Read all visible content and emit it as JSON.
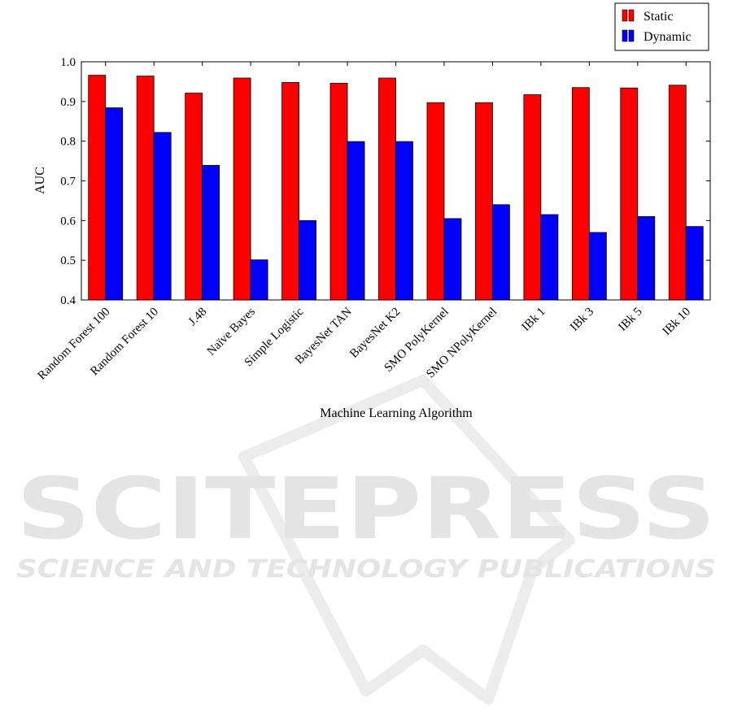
{
  "chart_data": {
    "type": "bar",
    "title": "",
    "xlabel": "Machine Learning Algorithm",
    "ylabel": "AUC",
    "ylim": [
      0.4,
      1.0
    ],
    "yticks": [
      "0.4",
      "0.5",
      "0.6",
      "0.7",
      "0.8",
      "0.9",
      "1.0"
    ],
    "grid": false,
    "legend_position": "top-right, outside plot",
    "categories": [
      "Random Forest 100",
      "Random Forest 10",
      "J.48",
      "Naïve Bayes",
      "Simple Logistic",
      "BayesNet TAN",
      "BayesNet K2",
      "SMO PolyKernel",
      "SMO NPolyKernel",
      "IBk 1",
      "IBk 3",
      "IBk 5",
      "IBk 10"
    ],
    "series": [
      {
        "name": "Static",
        "color": "#ff0000",
        "values": [
          0.966,
          0.964,
          0.921,
          0.959,
          0.948,
          0.946,
          0.959,
          0.897,
          0.897,
          0.917,
          0.935,
          0.934,
          0.941
        ]
      },
      {
        "name": "Dynamic",
        "color": "#0000ff",
        "values": [
          0.884,
          0.822,
          0.739,
          0.501,
          0.6,
          0.799,
          0.799,
          0.605,
          0.64,
          0.615,
          0.57,
          0.61,
          0.585
        ]
      }
    ]
  },
  "watermark": {
    "brand": "SCITEPRESS",
    "tagline": "SCIENCE AND TECHNOLOGY PUBLICATIONS",
    "color": "#e4e4e4"
  }
}
